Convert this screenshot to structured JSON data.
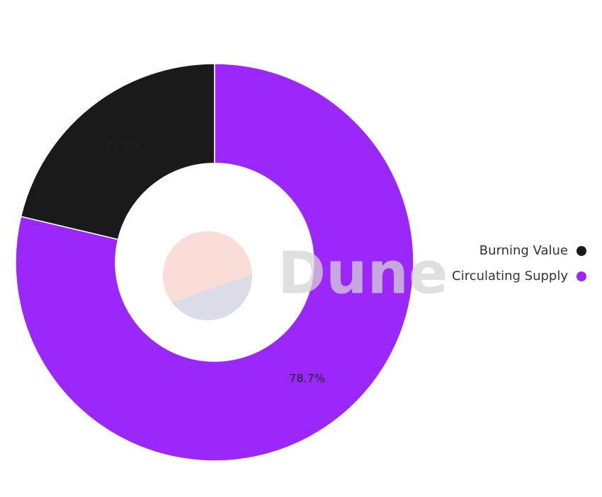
{
  "chart_data": {
    "type": "donut",
    "categories": [
      "Burning Value",
      "Circulating Supply"
    ],
    "values": [
      21.3,
      78.7
    ],
    "value_labels": [
      "21.3%",
      "78.7%"
    ],
    "colors": [
      "#1a1a1a",
      "#9b27fa"
    ],
    "legend": "right",
    "watermark": "Dune"
  }
}
